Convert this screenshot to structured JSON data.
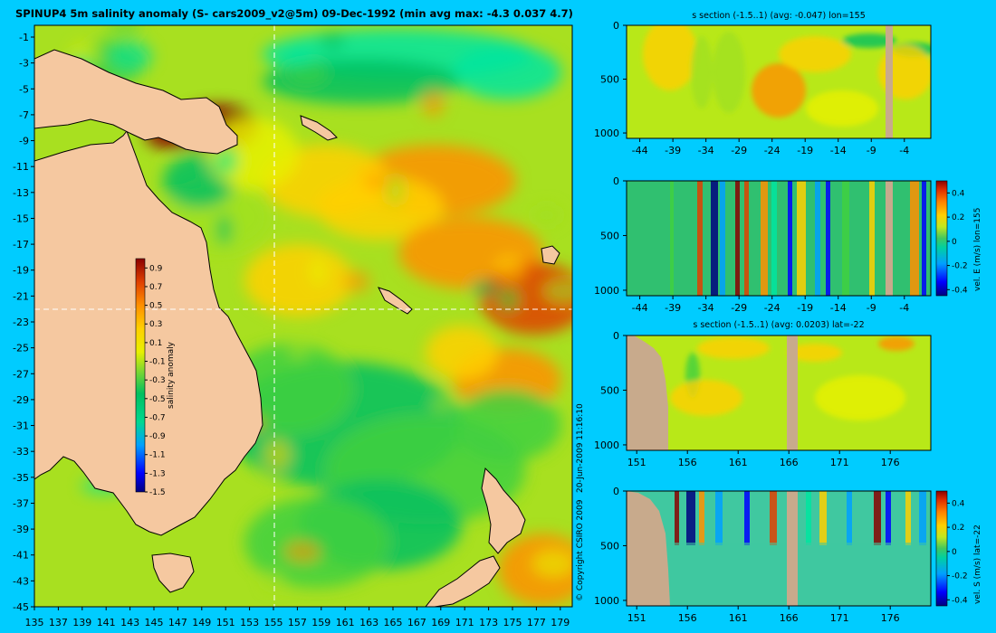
{
  "chart_data": [
    {
      "type": "heatmap",
      "title": "SPINUP4 5m salinity anomaly (S- cars2009_v2@5m) 09-Dec-1992 (min avg max: -4.3 0.037 4.7)",
      "xlim": [
        135,
        180
      ],
      "ylim": [
        -45,
        0
      ],
      "x_ticks": [
        "135",
        "137",
        "139",
        "141",
        "143",
        "145",
        "147",
        "149",
        "151",
        "153",
        "155",
        "157",
        "159",
        "161",
        "163",
        "165",
        "167",
        "169",
        "171",
        "173",
        "175",
        "177",
        "179"
      ],
      "y_ticks": [
        "-1",
        "-3",
        "-5",
        "-7",
        "-9",
        "-11",
        "-13",
        "-15",
        "-17",
        "-19",
        "-21",
        "-23",
        "-25",
        "-27",
        "-29",
        "-31",
        "-33",
        "-35",
        "-37",
        "-39",
        "-41",
        "-43",
        "-45"
      ],
      "crosshair": {
        "lon": 155,
        "lat": -22
      },
      "colorbar": {
        "label": "salinity anomaly",
        "ticks": [
          "0.9",
          "0.7",
          "0.5",
          "0.3",
          "0.1",
          "-0.1",
          "-0.3",
          "-0.5",
          "-0.7",
          "-0.9",
          "-1.1",
          "-1.3",
          "-1.5"
        ],
        "range": [
          -1.5,
          1.0
        ]
      },
      "annotations": [
        "© Copyright CSIRO 2009",
        "20-Jun-2009 11:16:10"
      ]
    },
    {
      "type": "heatmap",
      "title": "s section (-1.5..1) (avg: -0.047) lon=155",
      "x_ticks": [
        "-44",
        "-39",
        "-34",
        "-29",
        "-24",
        "-19",
        "-14",
        "-9",
        "-4"
      ],
      "y_ticks": [
        "0",
        "500",
        "1000"
      ],
      "xlim": [
        -46,
        0
      ],
      "ylim": [
        1050,
        0
      ]
    },
    {
      "type": "heatmap",
      "title": "",
      "x_ticks": [
        "-44",
        "-39",
        "-34",
        "-29",
        "-24",
        "-19",
        "-14",
        "-9",
        "-4"
      ],
      "y_ticks": [
        "0",
        "500",
        "1000"
      ],
      "xlim": [
        -46,
        0
      ],
      "ylim": [
        1050,
        0
      ],
      "colorbar": {
        "label": "vel. E (m/s) lon=155",
        "ticks": [
          "0.4",
          "0.2",
          "0",
          "-0.2",
          "-0.4"
        ],
        "range": [
          -0.45,
          0.5
        ]
      }
    },
    {
      "type": "heatmap",
      "title": "s section (-1.5..1) (avg: 0.0203) lat=-22",
      "x_ticks": [
        "151",
        "156",
        "161",
        "166",
        "171",
        "176"
      ],
      "y_ticks": [
        "0",
        "500",
        "1000"
      ],
      "xlim": [
        150,
        180
      ],
      "ylim": [
        1050,
        0
      ]
    },
    {
      "type": "heatmap",
      "title": "",
      "x_ticks": [
        "151",
        "156",
        "161",
        "166",
        "171",
        "176"
      ],
      "y_ticks": [
        "0",
        "500",
        "1000"
      ],
      "xlim": [
        150,
        180
      ],
      "ylim": [
        1050,
        0
      ],
      "colorbar": {
        "label": "vel. S (m/s) lat=-22",
        "ticks": [
          "0.4",
          "0.2",
          "0",
          "-0.2",
          "-0.4"
        ],
        "range": [
          -0.45,
          0.5
        ]
      }
    }
  ],
  "colors": {
    "background": "#00ccff",
    "land": "#f5c8a0",
    "section_land": "#c8aa8c",
    "colormap": [
      "#00007f",
      "#0000ff",
      "#00a0ff",
      "#00e5a0",
      "#00c060",
      "#40d040",
      "#a0e020",
      "#e8f000",
      "#ffd000",
      "#ff9000",
      "#e04000",
      "#8b0000"
    ]
  }
}
